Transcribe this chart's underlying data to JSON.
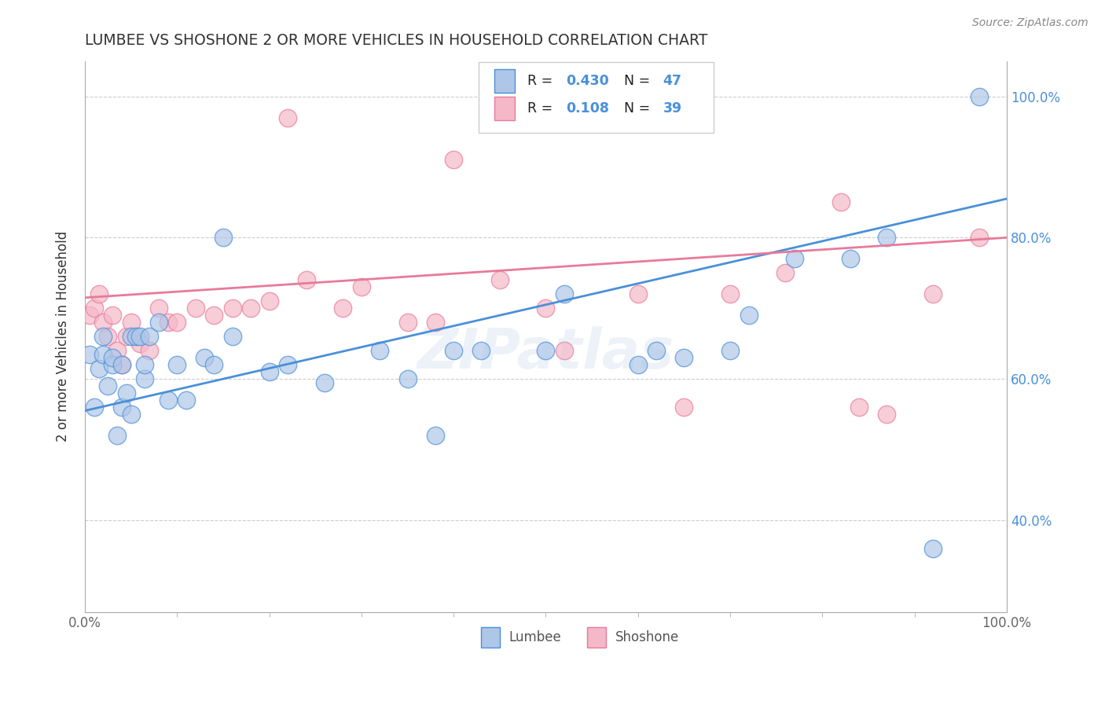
{
  "title": "LUMBEE VS SHOSHONE 2 OR MORE VEHICLES IN HOUSEHOLD CORRELATION CHART",
  "source_text": "Source: ZipAtlas.com",
  "ylabel": "2 or more Vehicles in Household",
  "xlim": [
    0,
    1
  ],
  "ylim": [
    0.27,
    1.05
  ],
  "xtick_labels": [
    "0.0%",
    "100.0%"
  ],
  "xtick_positions": [
    0.0,
    1.0
  ],
  "xtick_minor_positions": [
    0.1,
    0.2,
    0.3,
    0.4,
    0.5,
    0.6,
    0.7,
    0.8,
    0.9
  ],
  "ytick_labels": [
    "40.0%",
    "60.0%",
    "80.0%",
    "100.0%"
  ],
  "ytick_positions": [
    0.4,
    0.6,
    0.8,
    1.0
  ],
  "lumbee_color": "#aec6e8",
  "shoshone_color": "#f4b8c8",
  "lumbee_line_color": "#4a90d9",
  "shoshone_line_color": "#e87a9a",
  "lumbee_R": 0.43,
  "lumbee_N": 47,
  "shoshone_R": 0.108,
  "shoshone_N": 39,
  "legend_label_lumbee": "Lumbee",
  "legend_label_shoshone": "Shoshone",
  "watermark": "ZIPatlas",
  "lumbee_x": [
    0.005,
    0.01,
    0.015,
    0.02,
    0.02,
    0.025,
    0.03,
    0.03,
    0.035,
    0.04,
    0.04,
    0.045,
    0.05,
    0.05,
    0.055,
    0.06,
    0.065,
    0.065,
    0.07,
    0.08,
    0.09,
    0.1,
    0.11,
    0.13,
    0.14,
    0.16,
    0.2,
    0.22,
    0.26,
    0.32,
    0.35,
    0.38,
    0.4,
    0.43,
    0.5,
    0.52,
    0.6,
    0.62,
    0.65,
    0.7,
    0.72,
    0.77,
    0.83,
    0.87,
    0.92,
    0.97,
    0.15
  ],
  "lumbee_y": [
    0.635,
    0.56,
    0.615,
    0.635,
    0.66,
    0.59,
    0.62,
    0.63,
    0.52,
    0.56,
    0.62,
    0.58,
    0.55,
    0.66,
    0.66,
    0.66,
    0.6,
    0.62,
    0.66,
    0.68,
    0.57,
    0.62,
    0.57,
    0.63,
    0.62,
    0.66,
    0.61,
    0.62,
    0.595,
    0.64,
    0.6,
    0.52,
    0.64,
    0.64,
    0.64,
    0.72,
    0.62,
    0.64,
    0.63,
    0.64,
    0.69,
    0.77,
    0.77,
    0.8,
    0.36,
    1.0,
    0.8
  ],
  "shoshone_x": [
    0.005,
    0.01,
    0.015,
    0.02,
    0.025,
    0.03,
    0.035,
    0.04,
    0.045,
    0.05,
    0.06,
    0.07,
    0.08,
    0.09,
    0.1,
    0.12,
    0.14,
    0.16,
    0.18,
    0.2,
    0.24,
    0.28,
    0.3,
    0.35,
    0.38,
    0.4,
    0.45,
    0.5,
    0.52,
    0.6,
    0.65,
    0.7,
    0.76,
    0.82,
    0.84,
    0.87,
    0.92,
    0.97,
    0.22
  ],
  "shoshone_y": [
    0.69,
    0.7,
    0.72,
    0.68,
    0.66,
    0.69,
    0.64,
    0.62,
    0.66,
    0.68,
    0.65,
    0.64,
    0.7,
    0.68,
    0.68,
    0.7,
    0.69,
    0.7,
    0.7,
    0.71,
    0.74,
    0.7,
    0.73,
    0.68,
    0.68,
    0.91,
    0.74,
    0.7,
    0.64,
    0.72,
    0.56,
    0.72,
    0.75,
    0.85,
    0.56,
    0.55,
    0.72,
    0.8,
    0.97
  ]
}
